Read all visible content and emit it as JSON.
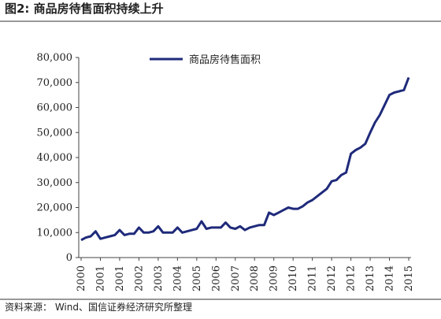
{
  "chart_data": {
    "type": "line",
    "title": "图2: 商品房待售面积持续上升",
    "source": "资料来源： Wind、国信证券经济研究所整理",
    "categories": [
      "2000",
      null,
      null,
      null,
      "2001",
      null,
      null,
      null,
      "2001",
      null,
      null,
      null,
      "2002",
      null,
      null,
      null,
      "2003",
      null,
      null,
      null,
      "2004",
      null,
      null,
      null,
      "2005",
      null,
      null,
      null,
      "2006",
      null,
      null,
      null,
      "2007",
      null,
      null,
      null,
      "2008",
      null,
      null,
      null,
      "2009",
      null,
      null,
      null,
      "2010",
      null,
      null,
      null,
      "2011",
      null,
      null,
      null,
      "2012",
      null,
      null,
      null,
      "2012",
      null,
      null,
      null,
      "2013",
      null,
      null,
      null,
      "2014",
      null,
      null,
      null,
      "2015"
    ],
    "series": [
      {
        "name": "商品房待售面积",
        "color": "#1f2a7a",
        "values": [
          7000,
          8000,
          8500,
          10500,
          7500,
          8000,
          8500,
          9000,
          11000,
          9000,
          9500,
          9500,
          12000,
          10000,
          10000,
          10500,
          12500,
          10000,
          10000,
          10000,
          12000,
          10000,
          10500,
          11000,
          11500,
          14500,
          11500,
          12000,
          12000,
          12000,
          14000,
          12000,
          11500,
          12500,
          11000,
          12000,
          12500,
          13000,
          13000,
          18000,
          17000,
          18000,
          19000,
          20000,
          19500,
          19500,
          20500,
          22000,
          23000,
          24500,
          26000,
          27500,
          30500,
          31000,
          33000,
          34000,
          41500,
          43000,
          44000,
          45500,
          50000,
          54000,
          57000,
          61000,
          65000,
          66000,
          66500,
          67000,
          72000
        ]
      }
    ],
    "ylim": [
      0,
      80000
    ],
    "yticks": [
      0,
      {
        "value": 10000,
        "label": "10,000"
      },
      {
        "value": 20000,
        "label": "20,000"
      },
      {
        "value": 30000,
        "label": "30,000"
      },
      {
        "value": 40000,
        "label": "40,000"
      },
      {
        "value": 50000,
        "label": "50,000"
      },
      {
        "value": 60000,
        "label": "60,000"
      },
      {
        "value": 70000,
        "label": "70,000"
      },
      {
        "value": 80000,
        "label": "80,000"
      }
    ],
    "legend": "top"
  }
}
